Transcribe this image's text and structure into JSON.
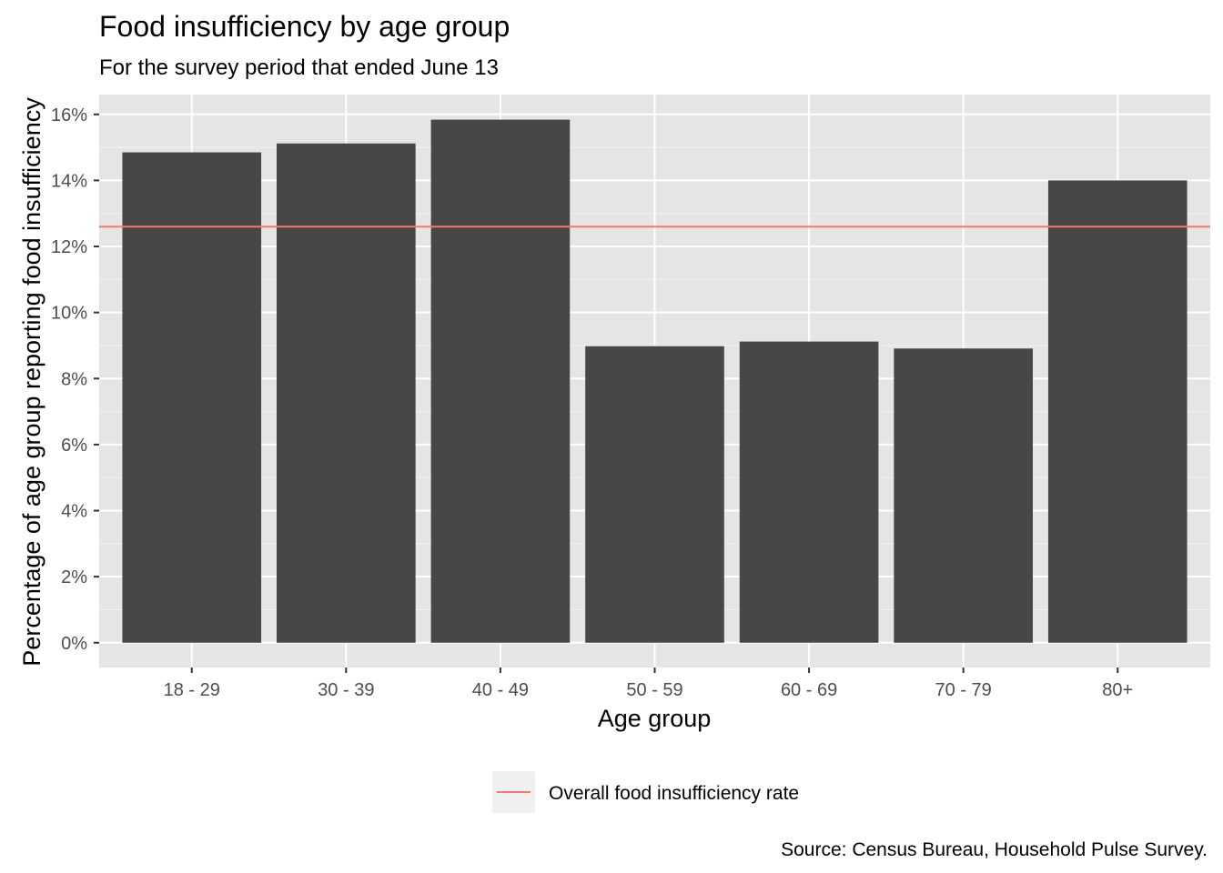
{
  "chart_data": {
    "type": "bar",
    "title": "Food insufficiency by age group",
    "subtitle": "For the survey period that ended June 13",
    "xlabel": "Age group",
    "ylabel": "Percentage of age group reporting food insufficiency",
    "categories": [
      "18 - 29",
      "30 - 39",
      "40 - 49",
      "50 - 59",
      "60 - 69",
      "70 - 79",
      "80+"
    ],
    "values": [
      14.85,
      15.12,
      15.84,
      8.98,
      9.12,
      8.91,
      14.0
    ],
    "ylim": [
      -0.75,
      16.6
    ],
    "yticks": [
      0,
      2,
      4,
      6,
      8,
      10,
      12,
      14,
      16
    ],
    "ytick_labels": [
      "0%",
      "2%",
      "4%",
      "6%",
      "8%",
      "10%",
      "12%",
      "14%",
      "16%"
    ],
    "reference_line": {
      "name": "Overall food insufficiency rate",
      "value": 12.6,
      "color": "#f8766d"
    },
    "bar_color": "#474747",
    "panel_background": "#e5e5e5",
    "grid": true,
    "legend_position": "bottom",
    "caption": "Source: Census Bureau, Household Pulse Survey."
  }
}
